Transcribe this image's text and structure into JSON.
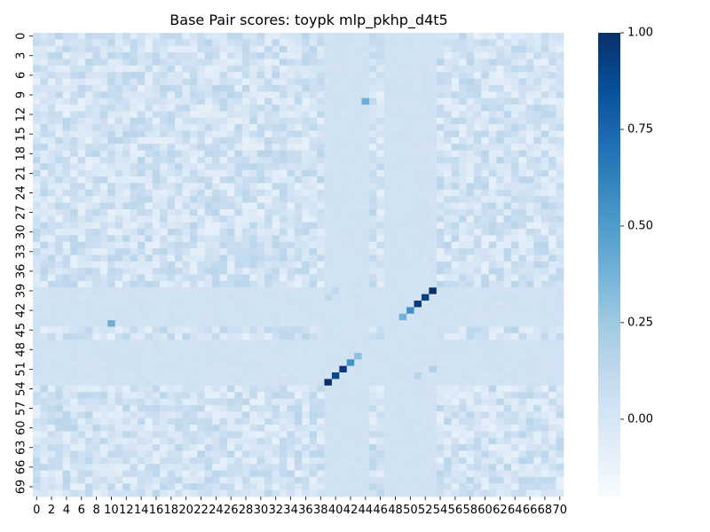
{
  "chart_data": {
    "type": "heatmap",
    "title": "Base Pair scores: toypk mlp_pkhp_d4t5",
    "xlabel": "",
    "ylabel": "",
    "n_rows": 71,
    "n_cols": 71,
    "x_tick_labels": [
      "0",
      "2",
      "4",
      "6",
      "8",
      "10",
      "12",
      "14",
      "16",
      "18",
      "20",
      "22",
      "24",
      "26",
      "28",
      "30",
      "32",
      "34",
      "36",
      "38",
      "40",
      "42",
      "44",
      "46",
      "48",
      "50",
      "52",
      "54",
      "56",
      "58",
      "60",
      "62",
      "64",
      "66",
      "68",
      "70"
    ],
    "y_tick_labels": [
      "0",
      "3",
      "6",
      "9",
      "12",
      "15",
      "18",
      "21",
      "24",
      "27",
      "30",
      "33",
      "36",
      "39",
      "42",
      "45",
      "48",
      "51",
      "54",
      "57",
      "60",
      "63",
      "66",
      "69"
    ],
    "colorscale": "Blues",
    "color_range": [
      -0.2,
      1.0
    ],
    "colorbar_ticks": [
      "1.00",
      "0.75",
      "0.50",
      "0.25",
      "0.00"
    ],
    "background_value_range": [
      -0.1,
      0.15
    ],
    "banded_rows": [
      39,
      40,
      41,
      42,
      43,
      44,
      47,
      48,
      49,
      50,
      51,
      52,
      53
    ],
    "banded_cols": [
      39,
      40,
      41,
      42,
      43,
      44,
      47,
      48,
      49,
      50,
      51,
      52,
      53
    ],
    "band_value": 0.03,
    "highlight_cells": [
      {
        "row": 39,
        "col": 53,
        "value": 1.0
      },
      {
        "row": 40,
        "col": 52,
        "value": 0.92
      },
      {
        "row": 41,
        "col": 51,
        "value": 0.95
      },
      {
        "row": 42,
        "col": 50,
        "value": 0.55
      },
      {
        "row": 43,
        "col": 49,
        "value": 0.38
      },
      {
        "row": 44,
        "col": 10,
        "value": 0.4
      },
      {
        "row": 10,
        "col": 44,
        "value": 0.4
      },
      {
        "row": 49,
        "col": 43,
        "value": 0.3
      },
      {
        "row": 50,
        "col": 42,
        "value": 0.55
      },
      {
        "row": 51,
        "col": 41,
        "value": 0.95
      },
      {
        "row": 52,
        "col": 40,
        "value": 0.9
      },
      {
        "row": 53,
        "col": 39,
        "value": 1.0
      },
      {
        "row": 40,
        "col": 39,
        "value": 0.12
      },
      {
        "row": 39,
        "col": 40,
        "value": 0.12
      },
      {
        "row": 51,
        "col": 53,
        "value": 0.18
      },
      {
        "row": 52,
        "col": 51,
        "value": 0.15
      }
    ],
    "legend": "colorbar-right",
    "grid": false
  }
}
